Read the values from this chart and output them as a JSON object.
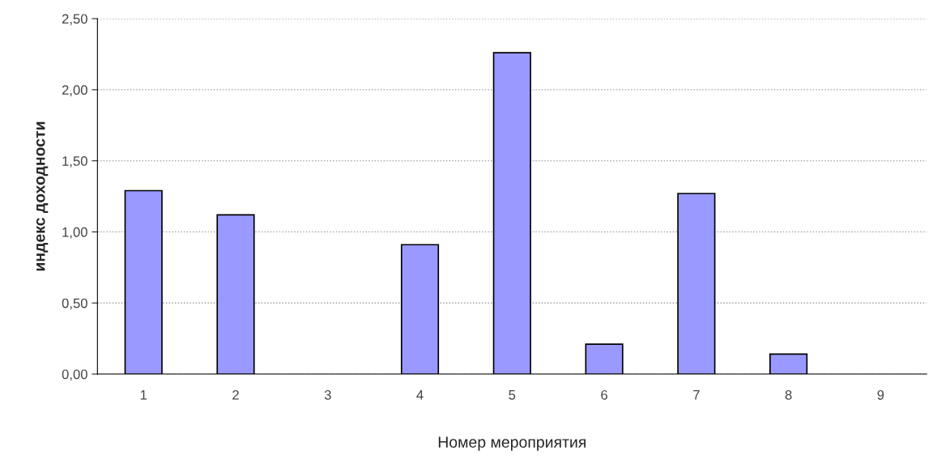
{
  "chart_data": {
    "type": "bar",
    "categories": [
      "1",
      "2",
      "3",
      "4",
      "5",
      "6",
      "7",
      "8",
      "9"
    ],
    "values": [
      1.29,
      1.12,
      0,
      0.91,
      2.26,
      0.21,
      1.27,
      0.14,
      0
    ],
    "color": "#9999ff",
    "xlabel": "Номер мероприятия",
    "ylabel": "индекс доходности",
    "ylim": [
      0,
      2.5
    ],
    "yticks": [
      {
        "value": 0,
        "label": "0,00"
      },
      {
        "value": 0.5,
        "label": "0,50"
      },
      {
        "value": 1,
        "label": "1,00"
      },
      {
        "value": 1.5,
        "label": "1,50"
      },
      {
        "value": 2,
        "label": "2,00"
      },
      {
        "value": 2.5,
        "label": "2,50"
      }
    ],
    "grid": "y",
    "legend": false
  }
}
